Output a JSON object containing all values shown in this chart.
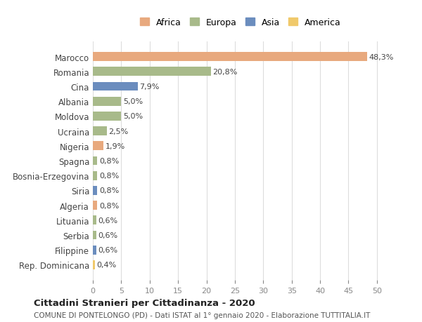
{
  "countries": [
    "Marocco",
    "Romania",
    "Cina",
    "Albania",
    "Moldova",
    "Ucraina",
    "Nigeria",
    "Spagna",
    "Bosnia-Erzegovina",
    "Siria",
    "Algeria",
    "Lituania",
    "Serbia",
    "Filippine",
    "Rep. Dominicana"
  ],
  "values": [
    48.3,
    20.8,
    7.9,
    5.0,
    5.0,
    2.5,
    1.9,
    0.8,
    0.8,
    0.8,
    0.8,
    0.6,
    0.6,
    0.6,
    0.4
  ],
  "labels": [
    "48,3%",
    "20,8%",
    "7,9%",
    "5,0%",
    "5,0%",
    "2,5%",
    "1,9%",
    "0,8%",
    "0,8%",
    "0,8%",
    "0,8%",
    "0,6%",
    "0,6%",
    "0,6%",
    "0,4%"
  ],
  "continents": [
    "Africa",
    "Europa",
    "Asia",
    "Europa",
    "Europa",
    "Europa",
    "Africa",
    "Europa",
    "Europa",
    "Asia",
    "Africa",
    "Europa",
    "Europa",
    "Asia",
    "America"
  ],
  "continent_colors": {
    "Africa": "#E8A97E",
    "Europa": "#A8BA8A",
    "Asia": "#6B8DBE",
    "America": "#F0C96B"
  },
  "legend_order": [
    "Africa",
    "Europa",
    "Asia",
    "America"
  ],
  "title": "Cittadini Stranieri per Cittadinanza - 2020",
  "subtitle": "COMUNE DI PONTELONGO (PD) - Dati ISTAT al 1° gennaio 2020 - Elaborazione TUTTITALIA.IT",
  "xlim": [
    0,
    52
  ],
  "xticks": [
    0,
    5,
    10,
    15,
    20,
    25,
    30,
    35,
    40,
    45,
    50
  ],
  "background_color": "#ffffff",
  "grid_color": "#dddddd"
}
